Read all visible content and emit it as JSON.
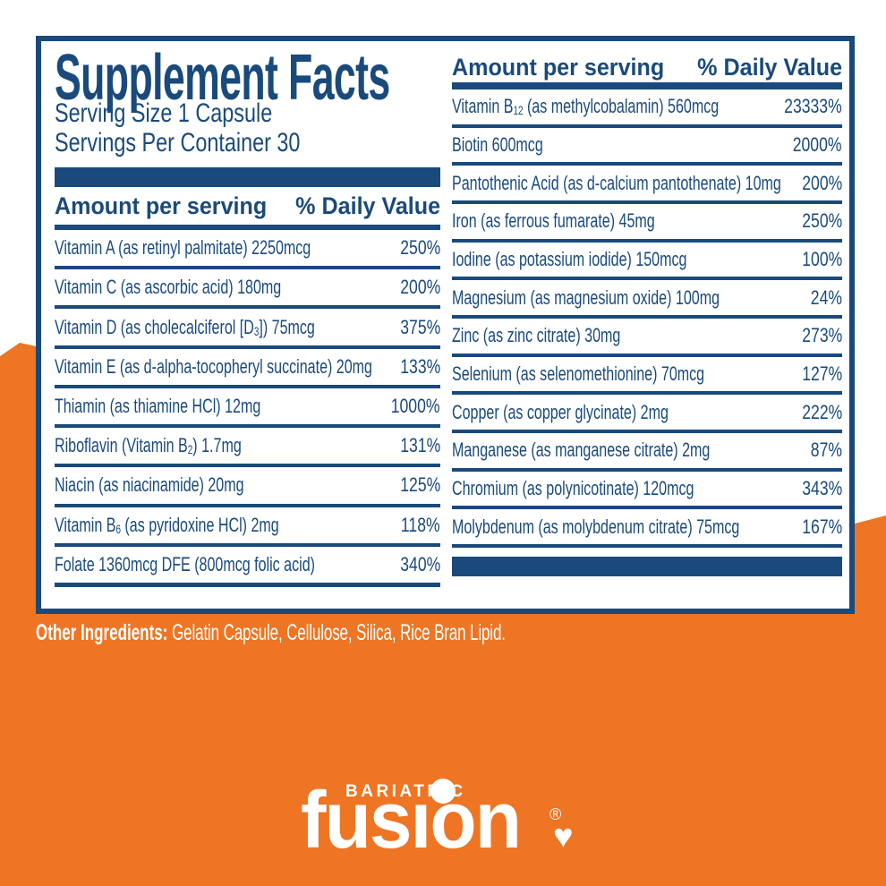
{
  "colors": {
    "navy": "#1a4a7c",
    "orange": "#ee7523",
    "panel_bg": "#ffffff",
    "light_text": "#ffffff"
  },
  "panel": {
    "title": "Supplement Facts",
    "serving_size": "Serving Size 1 Capsule",
    "servings_per_container": "Servings Per Container 30",
    "columns": [
      {
        "header": {
          "amount": "Amount per serving",
          "daily_value": "% Daily Value"
        },
        "rows": [
          {
            "name": "Vitamin A (as retinyl palmitate) 2250mcg",
            "daily_value": "250%"
          },
          {
            "name": "Vitamin C (as ascorbic acid) 180mg",
            "daily_value": "200%"
          },
          {
            "name": "Vitamin D (as cholecalciferol [D_{3}]) 75mcg",
            "daily_value": "375%"
          },
          {
            "name": "Vitamin E (as d-alpha-tocopheryl succinate) 20mg",
            "daily_value": "133%"
          },
          {
            "name": "Thiamin (as thiamine HCl) 12mg",
            "daily_value": "1000%"
          },
          {
            "name": "Riboflavin (Vitamin B_{2}) 1.7mg",
            "daily_value": "131%"
          },
          {
            "name": "Niacin (as niacinamide) 20mg",
            "daily_value": "125%"
          },
          {
            "name": "Vitamin B_{6} (as pyridoxine HCl) 2mg",
            "daily_value": "118%"
          },
          {
            "name": "Folate 1360mcg DFE (800mcg folic acid)",
            "daily_value": "340%"
          }
        ]
      },
      {
        "header": {
          "amount": "Amount per serving",
          "daily_value": "% Daily Value"
        },
        "rows": [
          {
            "name": "Vitamin B_{12} (as methylcobalamin) 560mcg",
            "daily_value": "23333%"
          },
          {
            "name": "Biotin 600mcg",
            "daily_value": "2000%"
          },
          {
            "name": "Pantothenic Acid (as d-calcium pantothenate) 10mg",
            "daily_value": "200%"
          },
          {
            "name": "Iron (as ferrous fumarate) 45mg",
            "daily_value": "250%"
          },
          {
            "name": "Iodine (as potassium iodide) 150mcg",
            "daily_value": "100%"
          },
          {
            "name": "Magnesium (as magnesium oxide) 100mg",
            "daily_value": "24%"
          },
          {
            "name": "Zinc (as zinc citrate) 30mg",
            "daily_value": "273%"
          },
          {
            "name": "Selenium (as selenomethionine) 70mcg",
            "daily_value": "127%"
          },
          {
            "name": "Copper (as copper glycinate) 2mg",
            "daily_value": "222%"
          },
          {
            "name": "Manganese (as manganese citrate) 2mg",
            "daily_value": "87%"
          },
          {
            "name": "Chromium (as polynicotinate) 120mcg",
            "daily_value": "343%"
          },
          {
            "name": "Molybdenum (as molybdenum citrate) 75mcg",
            "daily_value": "167%"
          }
        ]
      }
    ]
  },
  "other_ingredients": {
    "label": "Other Ingredients:",
    "text": "Gelatin Capsule, Cellulose, Silica, Rice Bran Lipid."
  },
  "logo": {
    "top_text": "BARIATRIC",
    "main_text": "fusion",
    "registered_mark": "®",
    "heart": "♥"
  }
}
